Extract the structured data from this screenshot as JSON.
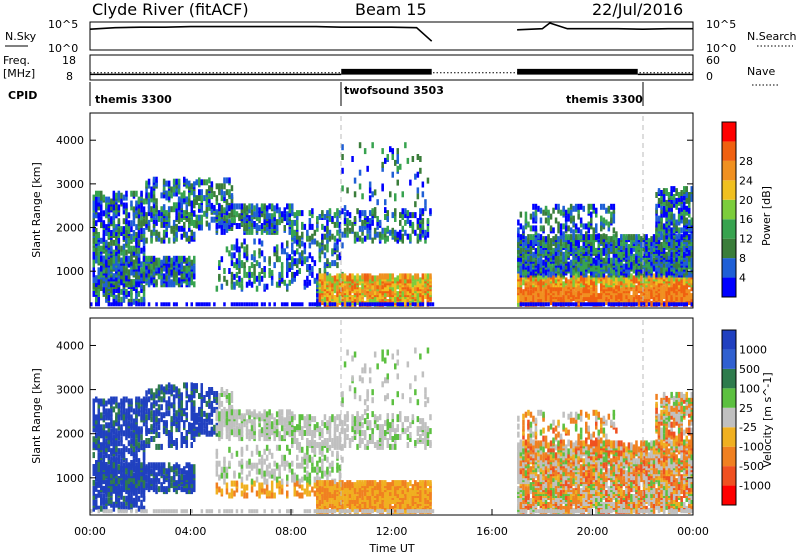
{
  "header": {
    "station_title": "Clyde River (fitACF)",
    "beam_label": "Beam 15",
    "date_label": "22/Jul/2016"
  },
  "panels": {
    "nsky": {
      "label": "N.Sky",
      "ticks": [
        "10^5",
        "10^0"
      ],
      "right_label": "N.Search",
      "right_ticks": [
        "10^5",
        "10^0"
      ]
    },
    "freq": {
      "label_line1": "Freq.",
      "label_line2": "[MHz]",
      "ticks": [
        "18",
        "8"
      ],
      "right_label": "Nave",
      "right_ticks": [
        "60",
        "0"
      ]
    },
    "cpid": {
      "label": "CPID",
      "segments": [
        {
          "name": "themis 3300",
          "start": 0.0,
          "end": 10.0
        },
        {
          "name": "twofsound 3503",
          "start": 10.0,
          "end": 20.8
        },
        {
          "name": "themis 3300",
          "start": 20.8,
          "end": 24.0
        }
      ]
    }
  },
  "chart_data": [
    {
      "type": "line",
      "title": "N.Sky / N.Search",
      "x": [
        0,
        1,
        2,
        3,
        4,
        5,
        6,
        7,
        8,
        9,
        10,
        11,
        12,
        13,
        13.6,
        17,
        18,
        18.3,
        19,
        20,
        21,
        22,
        23,
        24
      ],
      "series": [
        {
          "values": [
            3.8,
            4.1,
            4.2,
            4.2,
            4.3,
            4.3,
            4.3,
            4.3,
            4.3,
            4.3,
            4.2,
            4.2,
            4.2,
            4.1,
            1.5,
            3.7,
            3.9,
            5.0,
            3.9,
            3.9,
            3.9,
            3.8,
            3.9,
            3.9
          ]
        }
      ],
      "ylim": [
        0,
        5
      ]
    },
    {
      "type": "line",
      "title": "Freq. / Nave",
      "x": [
        0,
        2,
        4,
        6,
        8,
        10,
        10.01,
        12,
        13.6,
        17,
        18,
        20,
        21.8,
        21.81,
        24
      ],
      "series": [
        {
          "values": [
            10.5,
            10.5,
            10.5,
            10.5,
            10.5,
            10.5,
            12.5,
            12.5,
            12.5,
            12.5,
            12.5,
            12.5,
            12.5,
            10.5,
            10.5
          ]
        },
        {
          "values": [
            23,
            23,
            23,
            23,
            23,
            23,
            23,
            23,
            23,
            23,
            23,
            23,
            23,
            23,
            23
          ]
        }
      ],
      "ylim": [
        8,
        18
      ]
    },
    {
      "type": "heatmap",
      "title": "Power",
      "x_range": [
        0,
        24
      ],
      "xlabel": "",
      "ylabel": "Slant Range [km]",
      "yticks": [
        1000,
        2000,
        3000,
        4000
      ],
      "ylim": [
        180,
        4600
      ],
      "colorbar_label": "Power [dB]",
      "colorbar_ticks": [
        4,
        8,
        12,
        16,
        20,
        24,
        28
      ],
      "zlim": [
        0,
        30
      ],
      "colors": [
        "#0000ff",
        "#1f5fd6",
        "#3a7d3a",
        "#37a34f",
        "#7ccd3c",
        "#f0c020",
        "#f09020",
        "#f06010",
        "#ff0000"
      ],
      "data_gaps": [
        [
          13.6,
          17.0
        ]
      ]
    },
    {
      "type": "heatmap",
      "title": "Velocity",
      "x_range": [
        0,
        24
      ],
      "xlabel": "Time UT",
      "ylabel": "Slant Range [km]",
      "yticks": [
        1000,
        2000,
        3000,
        4000
      ],
      "ylim": [
        180,
        4600
      ],
      "colorbar_label": "Velocity [m s^-1]",
      "colorbar_ticks": [
        "1000",
        "500",
        "100",
        "25",
        "-25",
        "-100",
        "-500",
        "-1000"
      ],
      "colors": [
        "#2040c0",
        "#3060d0",
        "#2e7b4d",
        "#5cc040",
        "#c0c0c0",
        "#f0b020",
        "#f08020",
        "#f05020",
        "#ff0000"
      ],
      "data_gaps": [
        [
          13.6,
          17.0
        ]
      ]
    }
  ],
  "xaxis": {
    "ticks": [
      "00:00",
      "04:00",
      "08:00",
      "12:00",
      "16:00",
      "20:00",
      "00:00"
    ],
    "label": "Time UT"
  }
}
